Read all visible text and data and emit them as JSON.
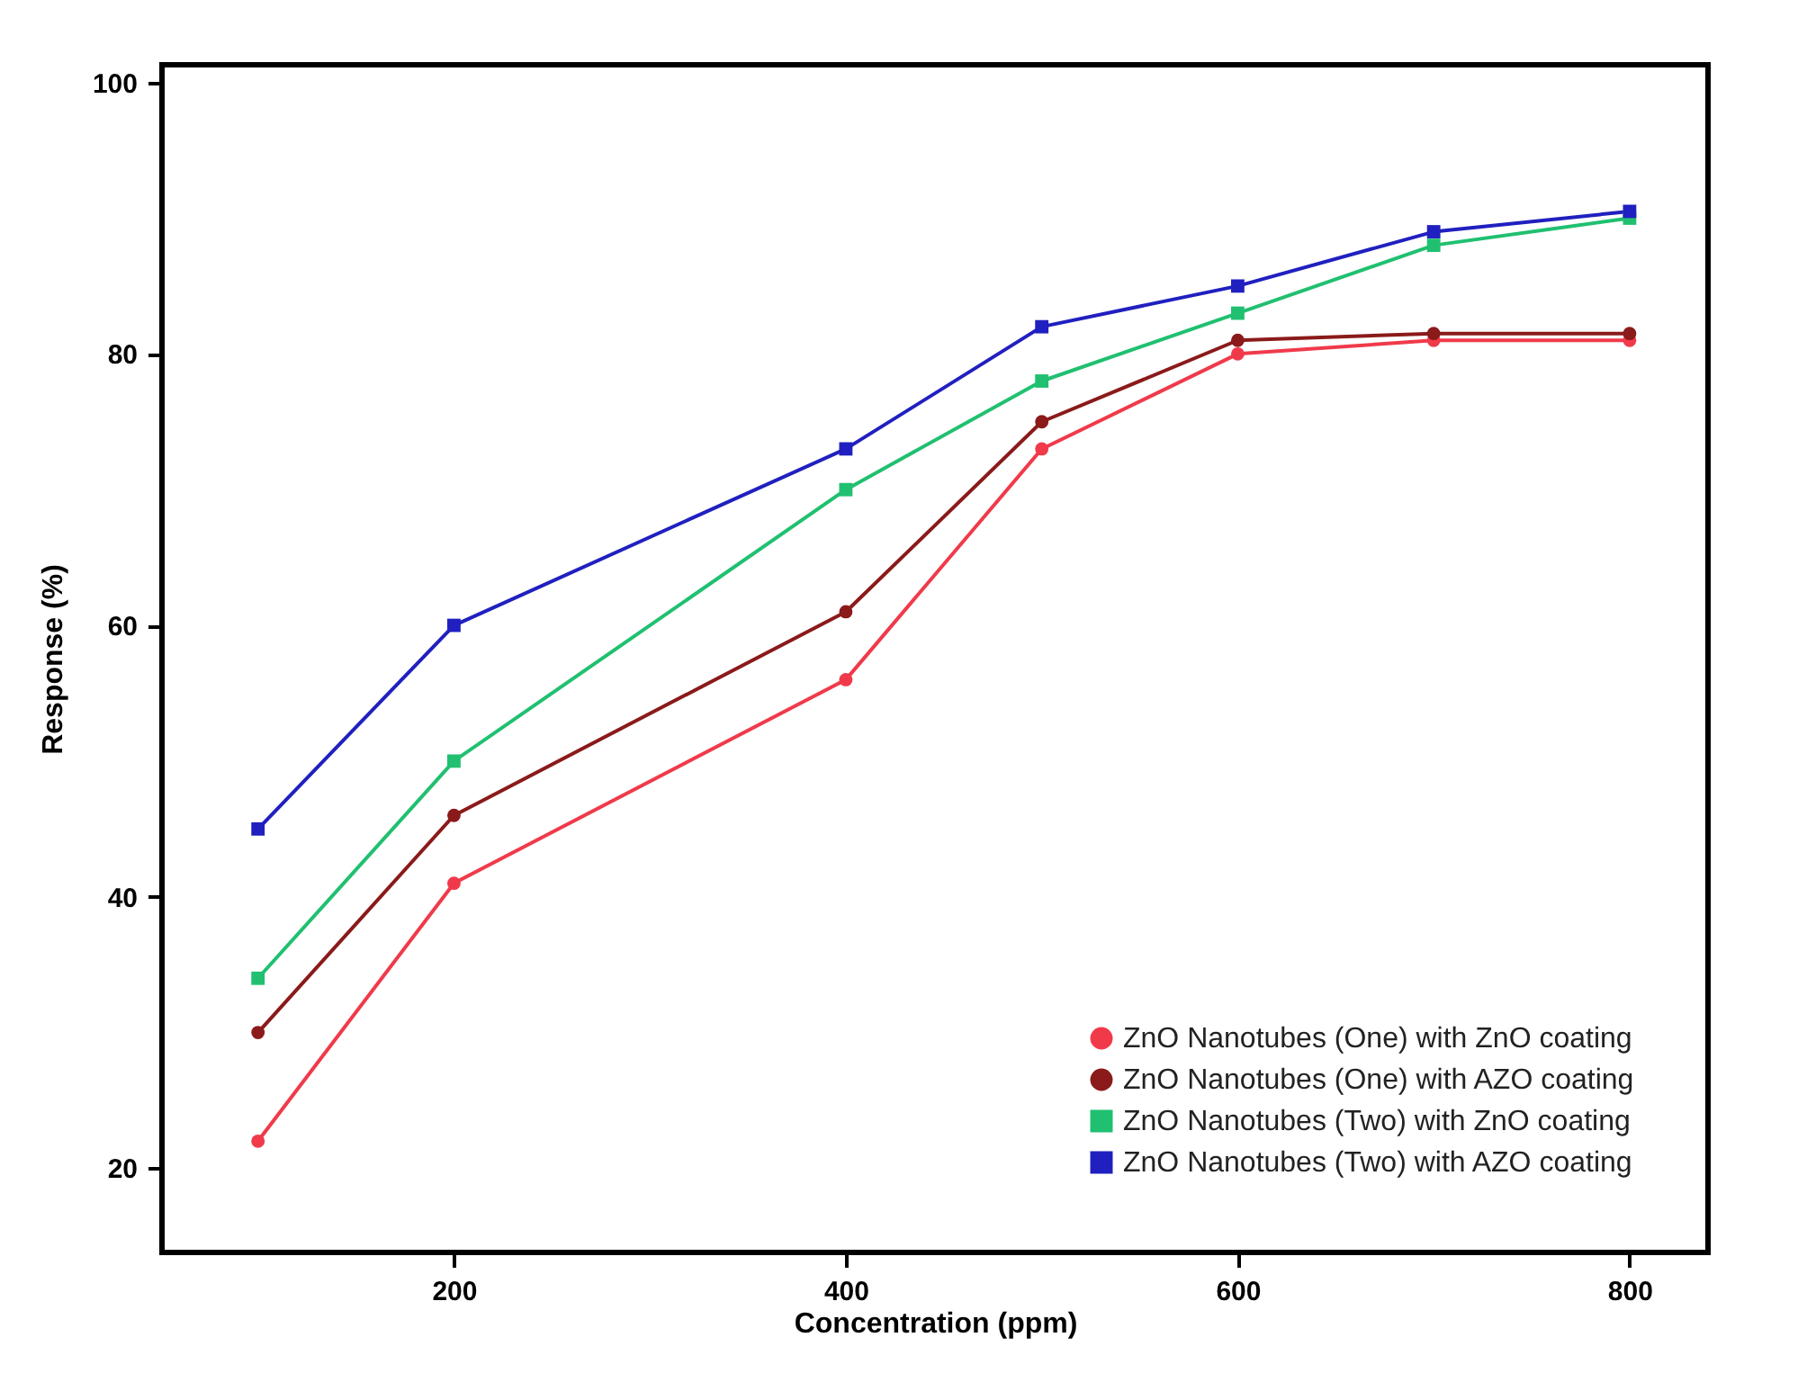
{
  "chart_data": {
    "type": "line",
    "xlabel": "Concentration (ppm)",
    "ylabel": "Response (%)",
    "x": [
      100,
      200,
      400,
      500,
      600,
      700,
      800
    ],
    "xlim": [
      51,
      840
    ],
    "xticks": [
      200,
      400,
      600,
      800
    ],
    "ylim": [
      13.8,
      101.3
    ],
    "yticks": [
      20,
      40,
      60,
      80,
      100
    ],
    "grid": false,
    "legend": "bottom right",
    "line_style": "solid",
    "series": [
      {
        "name": "ZnO Nanotubes (One) with ZnO coating",
        "color": "#f03a4a",
        "marker": "circle",
        "values": [
          22,
          41,
          56,
          73,
          80,
          81,
          81
        ]
      },
      {
        "name": "ZnO Nanotubes (One) with AZO coating",
        "color": "#8b1a1a",
        "marker": "circle",
        "values": [
          30,
          46,
          61,
          75,
          81,
          81.5,
          81.5
        ]
      },
      {
        "name": "ZnO Nanotubes (Two) with ZnO coating",
        "color": "#20c070",
        "marker": "square",
        "values": [
          34,
          50,
          70,
          78,
          83,
          88,
          90
        ]
      },
      {
        "name": "ZnO Nanotubes (Two) with AZO coating",
        "color": "#2020c0",
        "marker": "square",
        "values": [
          45,
          60,
          73,
          82,
          85,
          89,
          90.5
        ]
      }
    ]
  }
}
